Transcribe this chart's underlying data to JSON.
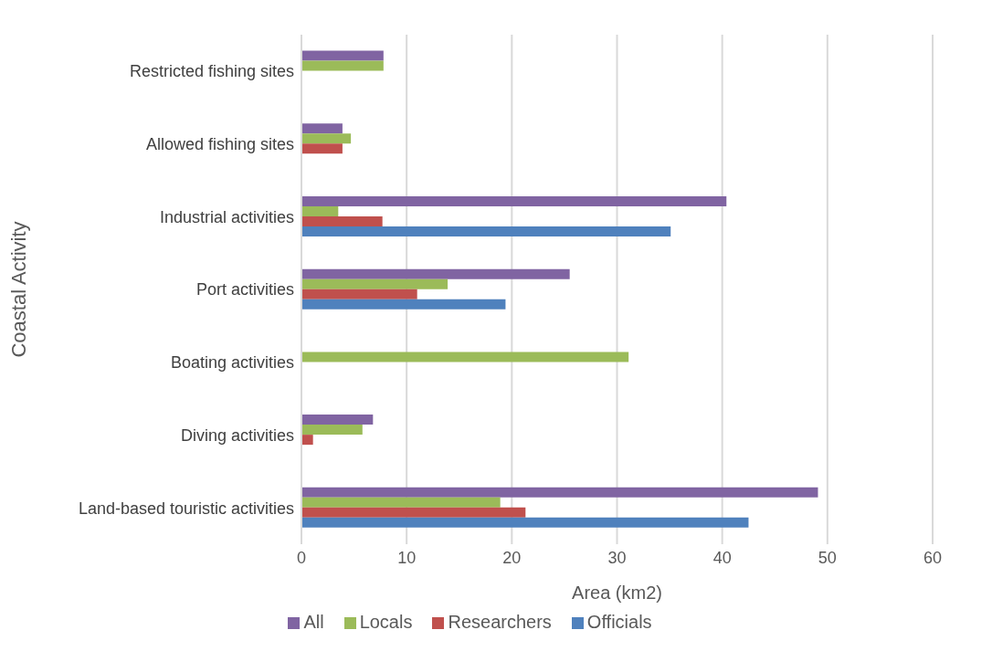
{
  "chart_data": {
    "type": "bar",
    "orientation": "horizontal",
    "xlabel": "Area (km2)",
    "ylabel": "Coastal Activity",
    "categories": [
      "Restricted fishing sites",
      "Allowed fishing sites",
      "Industrial activities",
      "Port activities",
      "Boating activities",
      "Diving activities",
      "Land-based touristic activities"
    ],
    "series": [
      {
        "name": "All",
        "color": "#8064a2",
        "values": [
          7.8,
          3.9,
          40.4,
          25.5,
          null,
          6.8,
          49.1
        ]
      },
      {
        "name": "Locals",
        "color": "#9bbb59",
        "values": [
          7.8,
          4.7,
          3.5,
          13.9,
          31.1,
          5.8,
          18.9
        ]
      },
      {
        "name": "Researchers",
        "color": "#c0504d",
        "values": [
          null,
          3.9,
          7.7,
          11.0,
          null,
          1.1,
          21.3
        ]
      },
      {
        "name": "Officials",
        "color": "#4f81bd",
        "values": [
          null,
          null,
          35.1,
          19.4,
          null,
          null,
          42.5
        ]
      }
    ],
    "xlim": [
      0,
      60
    ],
    "xticks": [
      0,
      10,
      20,
      30,
      40,
      50,
      60
    ],
    "grid": "x",
    "legend": "bottom"
  }
}
